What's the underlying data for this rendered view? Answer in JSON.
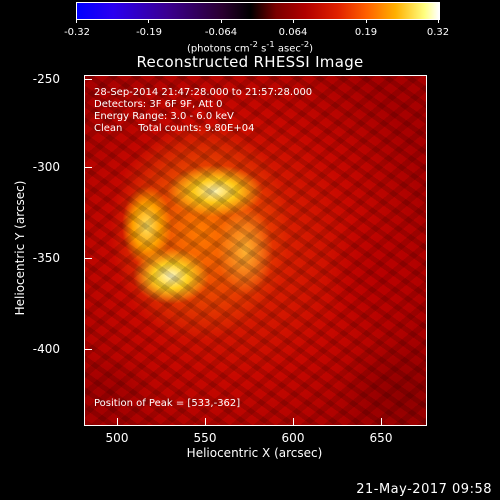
{
  "colorbar": {
    "ticks": [
      "-0.32",
      "-0.19",
      "-0.064",
      "0.064",
      "0.19",
      "0.32"
    ],
    "units_html": "(photons cm<sup>-2</sup> s<sup>-1</sup> asec<sup>-2</sup>)"
  },
  "plot": {
    "title": "Reconstructed RHESSI Image",
    "info_lines": [
      "28-Sep-2014 21:47:28.000 to 21:57:28.000",
      "Detectors: 3F 6F 9F, Att 0",
      "Energy Range: 3.0 - 6.0 keV",
      "Clean     Total counts: 9.80E+04"
    ],
    "peak_text": "Position of Peak = [533,-362]",
    "x_axis": {
      "label": "Heliocentric X (arcsec)",
      "ticks": [
        "500",
        "550",
        "600",
        "650"
      ]
    },
    "y_axis": {
      "label": "Heliocentric Y (arcsec)",
      "ticks": [
        "-250",
        "-300",
        "-350",
        "-400"
      ]
    }
  },
  "timestamp": "21-May-2017 09:58",
  "colors": {
    "background": "#000000",
    "text": "#ffffff"
  }
}
